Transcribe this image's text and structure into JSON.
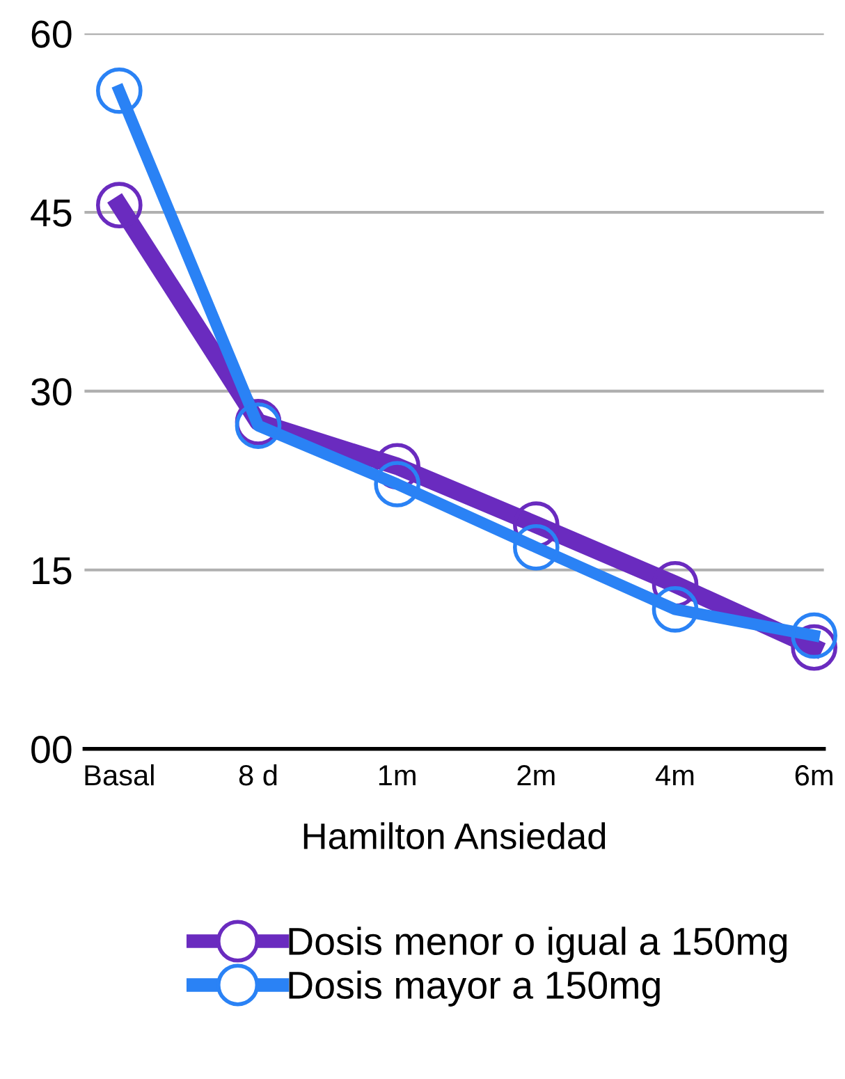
{
  "chart_data": {
    "type": "line",
    "xlabel": "Hamilton Ansiedad",
    "categories": [
      "Basal",
      "8 d",
      "1m",
      "2m",
      "4m",
      "6m"
    ],
    "series": [
      {
        "name": "Dosis menor o igual a 150mg",
        "color": "#6a2bbf",
        "values": [
          45.6,
          27.4,
          23.7,
          18.8,
          13.8,
          8.5
        ]
      },
      {
        "name": "Dosis mayor a 150mg",
        "color": "#2a82f5",
        "values": [
          55.2,
          27.1,
          22.2,
          16.9,
          11.7,
          9.5
        ]
      }
    ],
    "ylim": [
      0,
      60
    ],
    "yticks": [
      {
        "value": 0,
        "label": "00"
      },
      15,
      30,
      45,
      60
    ],
    "grid": "y",
    "legend": "bottom",
    "marker": "circle",
    "line_style": "solid"
  }
}
